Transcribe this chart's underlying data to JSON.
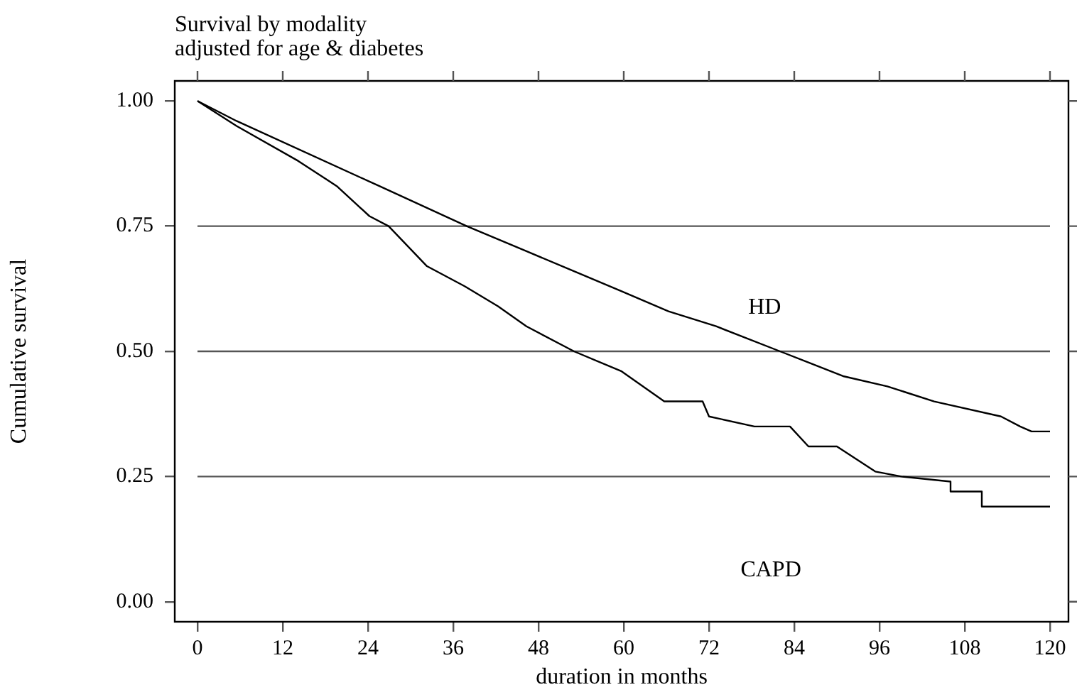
{
  "chart_data": {
    "type": "line",
    "title": "Survival by modality",
    "subtitle": "adjusted for age & diabetes",
    "xlabel": "duration in months",
    "ylabel": "Cumulative survival",
    "xlim": [
      -3.2,
      122.6
    ],
    "xticks": [
      0,
      12,
      24,
      36,
      48,
      60,
      72,
      84,
      96,
      108,
      120
    ],
    "ylim": [
      -0.04,
      1.04
    ],
    "yticks": [
      {
        "value": 0,
        "label": "0.00"
      },
      {
        "value": 0.25,
        "label": "0.25"
      },
      {
        "value": 0.5,
        "label": "0.50"
      },
      {
        "value": 0.75,
        "label": "0.75"
      },
      {
        "value": 1,
        "label": "1.00"
      }
    ],
    "grid": false,
    "legend": false,
    "marker": "none",
    "line_style": "solid",
    "annotations": [
      "HD",
      "CAPD"
    ],
    "ref_lines": [
      {
        "axis": "y",
        "value": 0.25,
        "color": "#555555"
      },
      {
        "axis": "y",
        "value": 0.5,
        "color": "#555555"
      },
      {
        "axis": "y",
        "value": 0.75,
        "color": "#555555"
      }
    ],
    "series": [
      {
        "color": "#000000",
        "x": [
          0,
          5.5,
          25.6,
          37.9,
          46.3,
          53,
          59.7,
          66.3,
          73,
          82,
          91,
          97.1,
          103.7,
          113.1,
          115.8,
          117.4,
          120
        ],
        "values": [
          1,
          0.96,
          0.83,
          0.75,
          0.7,
          0.66,
          0.62,
          0.58,
          0.55,
          0.5,
          0.45,
          0.43,
          0.4,
          0.37,
          0.35,
          0.34,
          0.34
        ]
      },
      {
        "color": "#000000",
        "x": [
          0,
          5.5,
          14.2,
          19.6,
          24.2,
          26.9,
          32.3,
          37.6,
          42.3,
          46.3,
          53,
          59.7,
          65.7,
          71.1,
          72,
          78.4,
          83.4,
          86,
          90,
          95.4,
          99.1,
          99.1,
          106,
          106,
          110.4,
          110.4,
          120
        ],
        "values": [
          1,
          0.95,
          0.88,
          0.83,
          0.77,
          0.75,
          0.67,
          0.63,
          0.59,
          0.55,
          0.5,
          0.46,
          0.4,
          0.4,
          0.37,
          0.35,
          0.35,
          0.31,
          0.31,
          0.26,
          0.25,
          0.25,
          0.24,
          0.22,
          0.22,
          0.19,
          0.19
        ]
      }
    ]
  }
}
